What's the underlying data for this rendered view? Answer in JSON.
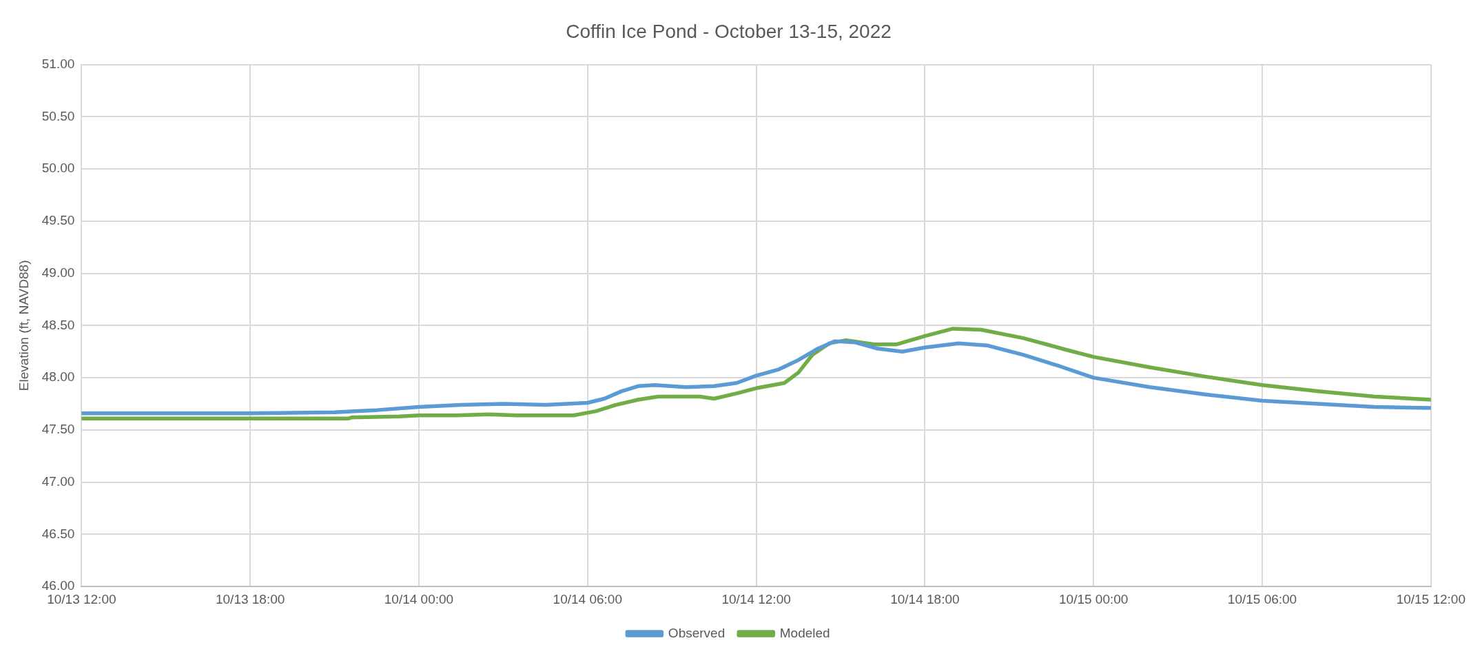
{
  "chart_data": {
    "type": "line",
    "title": "Coffin Ice Pond - October 13-15, 2022",
    "ylabel": "Elevation (ft, NAVD88)",
    "xlim": [
      "2022-10-13T12:00",
      "2022-10-15T12:00"
    ],
    "xticks": [
      {
        "value": "2022-10-13T12:00",
        "label": "10/13 12:00"
      },
      {
        "value": "2022-10-13T18:00",
        "label": "10/13 18:00"
      },
      {
        "value": "2022-10-14T00:00",
        "label": "10/14 00:00"
      },
      {
        "value": "2022-10-14T06:00",
        "label": "10/14 06:00"
      },
      {
        "value": "2022-10-14T12:00",
        "label": "10/14 12:00"
      },
      {
        "value": "2022-10-14T18:00",
        "label": "10/14 18:00"
      },
      {
        "value": "2022-10-15T00:00",
        "label": "10/15 00:00"
      },
      {
        "value": "2022-10-15T06:00",
        "label": "10/15 06:00"
      },
      {
        "value": "2022-10-15T12:00",
        "label": "10/15 12:00"
      }
    ],
    "ylim": [
      46,
      51
    ],
    "yticks": [
      {
        "value": 46,
        "label": "46.00"
      },
      {
        "value": 46.5,
        "label": "46.50"
      },
      {
        "value": 47,
        "label": "47.00"
      },
      {
        "value": 47.5,
        "label": "47.50"
      },
      {
        "value": 48,
        "label": "48.00"
      },
      {
        "value": 48.5,
        "label": "48.50"
      },
      {
        "value": 49,
        "label": "49.00"
      },
      {
        "value": 49.5,
        "label": "49.50"
      },
      {
        "value": 50,
        "label": "50.00"
      },
      {
        "value": 50.5,
        "label": "50.50"
      },
      {
        "value": 51,
        "label": "51.00"
      }
    ],
    "grid": true,
    "legend": "bottom",
    "marker": "none",
    "line_style": "solid",
    "series": [
      {
        "name": "Observed",
        "color": "#5b9bd5",
        "x": [
          "2022-10-13T12:00",
          "2022-10-13T18:00",
          "2022-10-13T21:00",
          "2022-10-13T22:30",
          "2022-10-14T00:00",
          "2022-10-14T01:30",
          "2022-10-14T03:00",
          "2022-10-14T04:30",
          "2022-10-14T06:00",
          "2022-10-14T06:36",
          "2022-10-14T07:12",
          "2022-10-14T07:48",
          "2022-10-14T08:24",
          "2022-10-14T09:30",
          "2022-10-14T10:30",
          "2022-10-14T11:18",
          "2022-10-14T12:00",
          "2022-10-14T12:48",
          "2022-10-14T13:30",
          "2022-10-14T14:12",
          "2022-10-14T14:48",
          "2022-10-14T15:30",
          "2022-10-14T16:18",
          "2022-10-14T17:12",
          "2022-10-14T18:00",
          "2022-10-14T19:12",
          "2022-10-14T20:12",
          "2022-10-14T21:30",
          "2022-10-14T22:48",
          "2022-10-15T00:00",
          "2022-10-15T02:00",
          "2022-10-15T04:00",
          "2022-10-15T06:00",
          "2022-10-15T08:00",
          "2022-10-15T10:00",
          "2022-10-15T12:00"
        ],
        "values": [
          47.66,
          47.66,
          47.67,
          47.69,
          47.72,
          47.74,
          47.75,
          47.74,
          47.76,
          47.8,
          47.87,
          47.92,
          47.93,
          47.91,
          47.92,
          47.95,
          48.02,
          48.08,
          48.17,
          48.28,
          48.35,
          48.34,
          48.28,
          48.25,
          48.29,
          48.33,
          48.31,
          48.22,
          48.11,
          48.0,
          47.91,
          47.84,
          47.78,
          47.75,
          47.72,
          47.71
        ]
      },
      {
        "name": "Modeled",
        "color": "#70ad47",
        "x": [
          "2022-10-13T12:00",
          "2022-10-13T21:30",
          "2022-10-13T21:36",
          "2022-10-13T23:18",
          "2022-10-14T00:00",
          "2022-10-14T01:18",
          "2022-10-14T02:30",
          "2022-10-14T03:30",
          "2022-10-14T05:30",
          "2022-10-14T06:18",
          "2022-10-14T07:00",
          "2022-10-14T07:48",
          "2022-10-14T08:30",
          "2022-10-14T10:00",
          "2022-10-14T10:30",
          "2022-10-14T11:18",
          "2022-10-14T12:00",
          "2022-10-14T13:00",
          "2022-10-14T13:30",
          "2022-10-14T14:00",
          "2022-10-14T14:36",
          "2022-10-14T15:12",
          "2022-10-14T16:12",
          "2022-10-14T17:00",
          "2022-10-14T18:00",
          "2022-10-14T19:00",
          "2022-10-14T20:00",
          "2022-10-14T21:30",
          "2022-10-14T23:00",
          "2022-10-15T00:00",
          "2022-10-15T02:00",
          "2022-10-15T04:00",
          "2022-10-15T06:00",
          "2022-10-15T08:00",
          "2022-10-15T10:00",
          "2022-10-15T12:00"
        ],
        "values": [
          47.61,
          47.61,
          47.62,
          47.63,
          47.64,
          47.64,
          47.65,
          47.64,
          47.64,
          47.68,
          47.74,
          47.79,
          47.82,
          47.82,
          47.8,
          47.85,
          47.9,
          47.95,
          48.05,
          48.22,
          48.33,
          48.36,
          48.32,
          48.32,
          48.4,
          48.47,
          48.46,
          48.38,
          48.27,
          48.2,
          48.1,
          48.01,
          47.93,
          47.87,
          47.82,
          47.79
        ]
      }
    ]
  }
}
